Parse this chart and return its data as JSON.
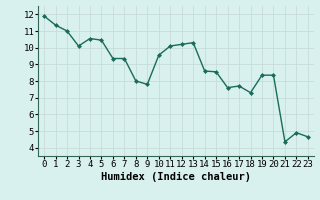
{
  "x": [
    0,
    1,
    2,
    3,
    4,
    5,
    6,
    7,
    8,
    9,
    10,
    11,
    12,
    13,
    14,
    15,
    16,
    17,
    18,
    19,
    20,
    21,
    22,
    23
  ],
  "y": [
    11.9,
    11.35,
    11.0,
    10.1,
    10.55,
    10.45,
    9.35,
    9.35,
    8.0,
    7.8,
    9.55,
    10.1,
    10.2,
    10.3,
    8.6,
    8.55,
    7.6,
    7.7,
    7.3,
    8.35,
    8.35,
    4.35,
    4.9,
    4.65
  ],
  "line_color": "#1a6b5a",
  "marker": "D",
  "marker_size": 2.0,
  "line_width": 1.0,
  "background_color": "#d8f0ee",
  "grid_color": "#c8dbd8",
  "xlabel": "Humidex (Indice chaleur)",
  "xlim": [
    -0.5,
    23.5
  ],
  "ylim": [
    3.5,
    12.5
  ],
  "xticks": [
    0,
    1,
    2,
    3,
    4,
    5,
    6,
    7,
    8,
    9,
    10,
    11,
    12,
    13,
    14,
    15,
    16,
    17,
    18,
    19,
    20,
    21,
    22,
    23
  ],
  "yticks": [
    4,
    5,
    6,
    7,
    8,
    9,
    10,
    11,
    12
  ],
  "xlabel_fontsize": 7.5,
  "tick_fontsize": 6.5,
  "spine_color": "#336655"
}
